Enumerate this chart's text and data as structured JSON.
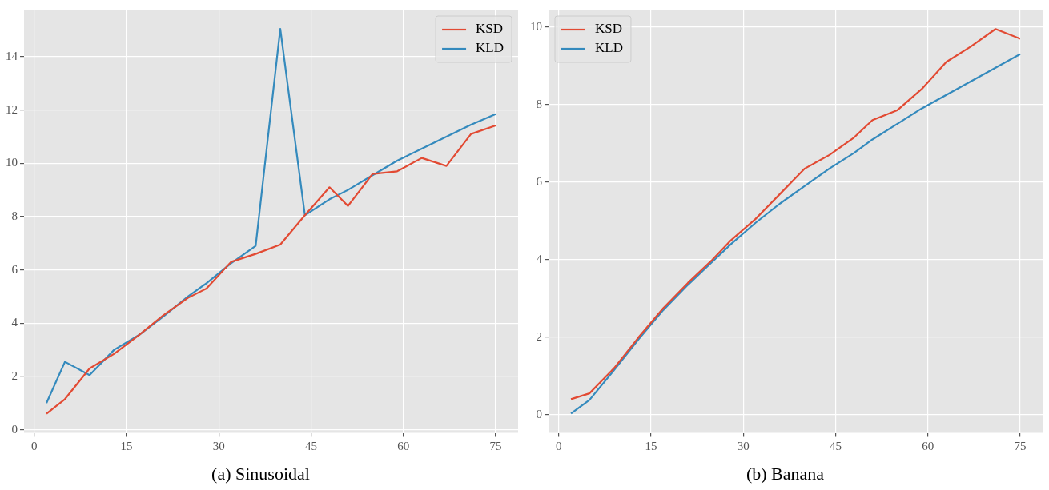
{
  "chart_data": [
    {
      "type": "line",
      "title": "(a) Sinusoidal",
      "x": [
        2,
        5,
        9,
        13,
        17,
        21,
        25,
        28,
        32,
        36,
        40,
        44,
        48,
        51,
        55,
        59,
        63,
        67,
        71,
        75
      ],
      "series": [
        {
          "name": "KSD",
          "color": "#e24a33",
          "values": [
            0.6,
            1.15,
            2.3,
            2.85,
            3.55,
            4.3,
            4.95,
            5.3,
            6.3,
            6.6,
            6.95,
            8.05,
            9.1,
            8.4,
            9.6,
            9.7,
            10.2,
            9.9,
            11.1,
            11.42
          ]
        },
        {
          "name": "KLD",
          "color": "#348abd",
          "values": [
            1.0,
            2.55,
            2.05,
            3.0,
            3.55,
            4.25,
            5.0,
            5.5,
            6.25,
            6.9,
            15.05,
            8.05,
            8.65,
            9.0,
            9.55,
            10.1,
            10.55,
            11.0,
            11.45,
            11.85
          ]
        }
      ],
      "xlim": [
        -1.65,
        78.65
      ],
      "xticks": [
        0,
        15,
        30,
        45,
        60,
        75
      ],
      "ylim": [
        -0.12,
        15.77
      ],
      "yticks": [
        0,
        2,
        4,
        6,
        8,
        10,
        12,
        14
      ],
      "grid": true,
      "legend": "top right",
      "marker": "none",
      "line_style": "solid"
    },
    {
      "type": "line",
      "title": "(b) Banana",
      "x": [
        2,
        5,
        9,
        13,
        17,
        21,
        25,
        28,
        32,
        36,
        40,
        44,
        48,
        51,
        55,
        59,
        63,
        67,
        71,
        75
      ],
      "series": [
        {
          "name": "KSD",
          "color": "#e24a33",
          "values": [
            0.4,
            0.55,
            1.2,
            2.0,
            2.75,
            3.4,
            4.0,
            4.5,
            5.05,
            5.7,
            6.35,
            6.7,
            7.15,
            7.6,
            7.85,
            8.4,
            9.1,
            9.5,
            9.95,
            9.7
          ]
        },
        {
          "name": "KLD",
          "color": "#348abd",
          "values": [
            0.03,
            0.38,
            1.15,
            1.95,
            2.7,
            3.35,
            3.95,
            4.4,
            4.95,
            5.45,
            5.9,
            6.35,
            6.75,
            7.1,
            7.5,
            7.9,
            8.25,
            8.6,
            8.95,
            9.3
          ]
        }
      ],
      "xlim": [
        -1.65,
        78.65
      ],
      "xticks": [
        0,
        15,
        30,
        45,
        60,
        75
      ],
      "ylim": [
        -0.47,
        10.45
      ],
      "yticks": [
        0,
        2,
        4,
        6,
        8,
        10
      ],
      "grid": true,
      "legend": "top left",
      "marker": "none",
      "line_style": "solid"
    }
  ]
}
